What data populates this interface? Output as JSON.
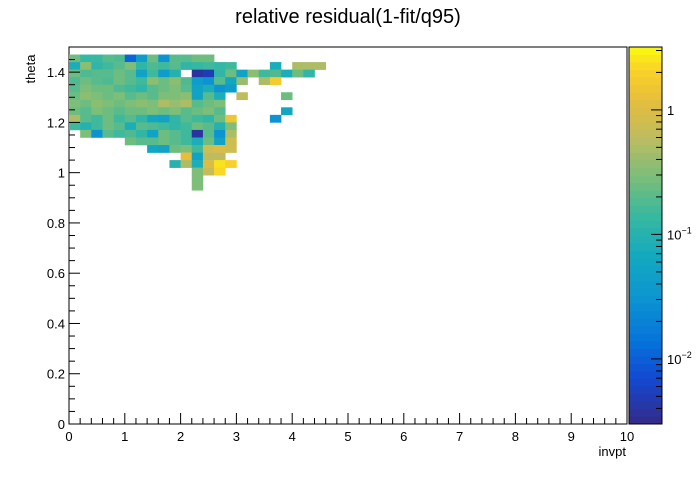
{
  "chart_data": {
    "type": "heatmap",
    "title": "relative residual(1-fit/q95)",
    "xlabel": "invpt",
    "ylabel": "theta",
    "xlim": [
      0,
      10
    ],
    "ylim": [
      0,
      1.5
    ],
    "x_ticks": [
      "0",
      "1",
      "2",
      "3",
      "4",
      "5",
      "6",
      "7",
      "8",
      "9",
      "10"
    ],
    "y_ticks": [
      "0",
      "0.2",
      "0.4",
      "0.6",
      "0.8",
      "1",
      "1.2",
      "1.4"
    ],
    "colorbar": {
      "scale": "log",
      "range": [
        0.003,
        3.2
      ],
      "tick_labels": [
        {
          "value": 1,
          "base": "1",
          "exp": ""
        },
        {
          "value": 0.1,
          "base": "10",
          "exp": "−1"
        },
        {
          "value": 0.01,
          "base": "10",
          "exp": "−2"
        }
      ]
    },
    "bins": {
      "x_width": 0.2,
      "y_width": 0.03,
      "cells": [
        [
          0.0,
          1.44,
          0.25
        ],
        [
          0.2,
          1.44,
          0.13
        ],
        [
          0.4,
          1.44,
          0.14
        ],
        [
          0.6,
          1.44,
          0.2
        ],
        [
          0.8,
          1.44,
          0.18
        ],
        [
          1.0,
          1.44,
          0.011
        ],
        [
          1.2,
          1.44,
          0.04
        ],
        [
          1.4,
          1.44,
          0.25
        ],
        [
          1.6,
          1.44,
          0.03
        ],
        [
          1.8,
          1.44,
          0.2
        ],
        [
          2.0,
          1.44,
          0.2
        ],
        [
          2.2,
          1.44,
          0.25
        ],
        [
          2.4,
          1.44,
          0.25
        ],
        [
          0.0,
          1.41,
          0.08
        ],
        [
          0.2,
          1.41,
          0.35
        ],
        [
          0.4,
          1.41,
          0.12
        ],
        [
          0.6,
          1.41,
          0.15
        ],
        [
          0.8,
          1.41,
          0.2
        ],
        [
          1.0,
          1.41,
          0.3
        ],
        [
          1.2,
          1.41,
          0.12
        ],
        [
          1.4,
          1.41,
          0.18
        ],
        [
          1.6,
          1.41,
          0.15
        ],
        [
          1.8,
          1.41,
          0.2
        ],
        [
          2.0,
          1.41,
          0.12
        ],
        [
          2.2,
          1.41,
          0.13
        ],
        [
          2.4,
          1.41,
          0.15
        ],
        [
          2.6,
          1.41,
          0.13
        ],
        [
          2.8,
          1.41,
          0.15
        ],
        [
          3.6,
          1.41,
          0.08
        ],
        [
          4.0,
          1.41,
          0.5
        ],
        [
          4.2,
          1.41,
          0.5
        ],
        [
          4.4,
          1.41,
          0.5
        ],
        [
          0.0,
          1.38,
          0.25
        ],
        [
          0.2,
          1.38,
          0.18
        ],
        [
          0.4,
          1.38,
          0.2
        ],
        [
          0.6,
          1.38,
          0.2
        ],
        [
          0.8,
          1.38,
          0.25
        ],
        [
          1.0,
          1.38,
          0.2
        ],
        [
          1.2,
          1.38,
          0.05
        ],
        [
          1.4,
          1.38,
          0.15
        ],
        [
          1.6,
          1.38,
          0.04
        ],
        [
          1.8,
          1.38,
          0.1
        ],
        [
          2.2,
          1.38,
          0.004
        ],
        [
          2.4,
          1.38,
          0.005
        ],
        [
          2.6,
          1.38,
          0.12
        ],
        [
          2.8,
          1.38,
          0.25
        ],
        [
          3.0,
          1.38,
          0.05
        ],
        [
          3.2,
          1.38,
          0.35
        ],
        [
          3.4,
          1.38,
          0.15
        ],
        [
          3.6,
          1.38,
          0.18
        ],
        [
          3.8,
          1.38,
          0.08
        ],
        [
          4.0,
          1.38,
          0.25
        ],
        [
          4.2,
          1.38,
          0.12
        ],
        [
          0.0,
          1.35,
          0.18
        ],
        [
          0.2,
          1.35,
          0.25
        ],
        [
          0.4,
          1.35,
          0.2
        ],
        [
          0.6,
          1.35,
          0.18
        ],
        [
          0.8,
          1.35,
          0.25
        ],
        [
          1.0,
          1.35,
          0.2
        ],
        [
          1.2,
          1.35,
          0.15
        ],
        [
          1.4,
          1.35,
          0.35
        ],
        [
          1.6,
          1.35,
          0.25
        ],
        [
          1.8,
          1.35,
          0.35
        ],
        [
          2.0,
          1.35,
          0.18
        ],
        [
          2.2,
          1.35,
          0.04
        ],
        [
          2.4,
          1.35,
          0.03
        ],
        [
          2.6,
          1.35,
          0.2
        ],
        [
          2.8,
          1.35,
          0.06
        ],
        [
          3.0,
          1.35,
          0.4
        ],
        [
          3.4,
          1.35,
          0.5
        ],
        [
          3.6,
          1.35,
          1.8
        ],
        [
          0.0,
          1.32,
          0.2
        ],
        [
          0.2,
          1.32,
          0.3
        ],
        [
          0.4,
          1.32,
          0.25
        ],
        [
          0.6,
          1.32,
          0.25
        ],
        [
          0.8,
          1.32,
          0.18
        ],
        [
          1.0,
          1.32,
          0.15
        ],
        [
          1.2,
          1.32,
          0.12
        ],
        [
          1.4,
          1.32,
          0.2
        ],
        [
          1.6,
          1.32,
          0.25
        ],
        [
          1.8,
          1.32,
          0.3
        ],
        [
          2.0,
          1.32,
          0.2
        ],
        [
          2.2,
          1.32,
          0.05
        ],
        [
          2.4,
          1.32,
          0.08
        ],
        [
          2.6,
          1.32,
          0.03
        ],
        [
          2.8,
          1.32,
          0.04
        ],
        [
          0.0,
          1.29,
          0.25
        ],
        [
          0.2,
          1.29,
          0.35
        ],
        [
          0.4,
          1.29,
          0.3
        ],
        [
          0.6,
          1.29,
          0.25
        ],
        [
          0.8,
          1.29,
          0.3
        ],
        [
          1.0,
          1.29,
          0.2
        ],
        [
          1.2,
          1.29,
          0.25
        ],
        [
          1.4,
          1.29,
          0.2
        ],
        [
          1.6,
          1.29,
          0.3
        ],
        [
          1.8,
          1.29,
          0.3
        ],
        [
          2.0,
          1.29,
          0.35
        ],
        [
          2.2,
          1.29,
          0.05
        ],
        [
          2.4,
          1.29,
          0.2
        ],
        [
          2.6,
          1.29,
          0.08
        ],
        [
          3.0,
          1.29,
          0.6
        ],
        [
          3.8,
          1.29,
          0.25
        ],
        [
          0.0,
          1.26,
          0.3
        ],
        [
          0.2,
          1.26,
          0.25
        ],
        [
          0.4,
          1.26,
          0.35
        ],
        [
          0.6,
          1.26,
          0.3
        ],
        [
          0.8,
          1.26,
          0.25
        ],
        [
          1.0,
          1.26,
          0.3
        ],
        [
          1.2,
          1.26,
          0.35
        ],
        [
          1.4,
          1.26,
          0.3
        ],
        [
          1.6,
          1.26,
          0.5
        ],
        [
          1.8,
          1.26,
          0.4
        ],
        [
          2.0,
          1.26,
          0.5
        ],
        [
          2.2,
          1.26,
          0.2
        ],
        [
          2.4,
          1.26,
          0.25
        ],
        [
          2.6,
          1.26,
          0.3
        ],
        [
          0.0,
          1.23,
          0.25
        ],
        [
          0.2,
          1.23,
          0.2
        ],
        [
          0.4,
          1.23,
          0.3
        ],
        [
          0.6,
          1.23,
          0.25
        ],
        [
          0.8,
          1.23,
          0.2
        ],
        [
          1.0,
          1.23,
          0.25
        ],
        [
          1.2,
          1.23,
          0.25
        ],
        [
          1.4,
          1.23,
          0.3
        ],
        [
          1.6,
          1.23,
          0.25
        ],
        [
          1.8,
          1.23,
          0.3
        ],
        [
          2.0,
          1.23,
          0.2
        ],
        [
          2.2,
          1.23,
          0.25
        ],
        [
          2.4,
          1.23,
          0.3
        ],
        [
          2.6,
          1.23,
          0.2
        ],
        [
          3.8,
          1.23,
          0.06
        ],
        [
          0.0,
          1.2,
          0.5
        ],
        [
          0.2,
          1.2,
          0.2
        ],
        [
          0.4,
          1.2,
          0.15
        ],
        [
          0.6,
          1.2,
          0.25
        ],
        [
          0.8,
          1.2,
          0.15
        ],
        [
          1.0,
          1.2,
          0.2
        ],
        [
          1.2,
          1.2,
          0.12
        ],
        [
          1.4,
          1.2,
          0.06
        ],
        [
          1.6,
          1.2,
          0.05
        ],
        [
          1.8,
          1.2,
          0.12
        ],
        [
          2.0,
          1.2,
          0.2
        ],
        [
          2.2,
          1.2,
          0.15
        ],
        [
          2.4,
          1.2,
          0.12
        ],
        [
          2.6,
          1.2,
          0.25
        ],
        [
          2.8,
          1.2,
          1.5
        ],
        [
          3.6,
          1.2,
          0.03
        ],
        [
          0.0,
          1.17,
          0.15
        ],
        [
          0.2,
          1.17,
          0.1
        ],
        [
          0.4,
          1.17,
          0.15
        ],
        [
          0.6,
          1.17,
          0.25
        ],
        [
          0.8,
          1.17,
          0.2
        ],
        [
          1.0,
          1.17,
          0.08
        ],
        [
          1.2,
          1.17,
          0.2
        ],
        [
          1.4,
          1.17,
          0.18
        ],
        [
          1.6,
          1.17,
          0.15
        ],
        [
          1.8,
          1.17,
          0.12
        ],
        [
          2.0,
          1.17,
          0.15
        ],
        [
          2.2,
          1.17,
          0.25
        ],
        [
          2.4,
          1.17,
          0.2
        ],
        [
          2.6,
          1.17,
          0.1
        ],
        [
          2.8,
          1.17,
          0.3
        ],
        [
          0.2,
          1.14,
          0.3
        ],
        [
          0.4,
          1.14,
          0.03
        ],
        [
          0.6,
          1.14,
          0.2
        ],
        [
          0.8,
          1.14,
          0.15
        ],
        [
          1.0,
          1.14,
          0.18
        ],
        [
          1.2,
          1.14,
          0.12
        ],
        [
          1.4,
          1.14,
          0.05
        ],
        [
          1.6,
          1.14,
          0.25
        ],
        [
          1.8,
          1.14,
          0.2
        ],
        [
          2.0,
          1.14,
          0.15
        ],
        [
          2.2,
          1.14,
          0.004
        ],
        [
          2.4,
          1.14,
          0.2
        ],
        [
          2.6,
          1.14,
          0.03
        ],
        [
          2.8,
          1.14,
          0.5
        ],
        [
          1.0,
          1.11,
          0.25
        ],
        [
          1.2,
          1.11,
          0.2
        ],
        [
          1.4,
          1.11,
          0.2
        ],
        [
          1.6,
          1.11,
          0.25
        ],
        [
          1.8,
          1.11,
          0.2
        ],
        [
          2.0,
          1.11,
          0.15
        ],
        [
          2.2,
          1.11,
          0.08
        ],
        [
          2.4,
          1.11,
          0.25
        ],
        [
          2.6,
          1.11,
          0.05
        ],
        [
          2.8,
          1.11,
          0.8
        ],
        [
          1.4,
          1.08,
          0.06
        ],
        [
          1.6,
          1.08,
          0.05
        ],
        [
          1.8,
          1.08,
          0.25
        ],
        [
          2.0,
          1.08,
          0.3
        ],
        [
          2.2,
          1.08,
          0.15
        ],
        [
          2.4,
          1.08,
          0.8
        ],
        [
          2.6,
          1.08,
          1.0
        ],
        [
          2.8,
          1.08,
          0.8
        ],
        [
          2.0,
          1.05,
          1.2
        ],
        [
          2.2,
          1.05,
          0.05
        ],
        [
          2.4,
          1.05,
          0.6
        ],
        [
          2.6,
          1.05,
          0.6
        ],
        [
          1.8,
          1.02,
          0.1
        ],
        [
          2.0,
          1.02,
          0.5
        ],
        [
          2.2,
          1.02,
          0.08
        ],
        [
          2.4,
          1.02,
          1.0
        ],
        [
          2.6,
          1.02,
          2.5
        ],
        [
          2.8,
          1.02,
          2.0
        ],
        [
          2.2,
          0.99,
          0.3
        ],
        [
          2.4,
          0.99,
          0.7
        ],
        [
          2.6,
          0.99,
          2.2
        ],
        [
          2.2,
          0.96,
          0.3
        ],
        [
          2.2,
          0.93,
          0.3
        ]
      ]
    }
  }
}
